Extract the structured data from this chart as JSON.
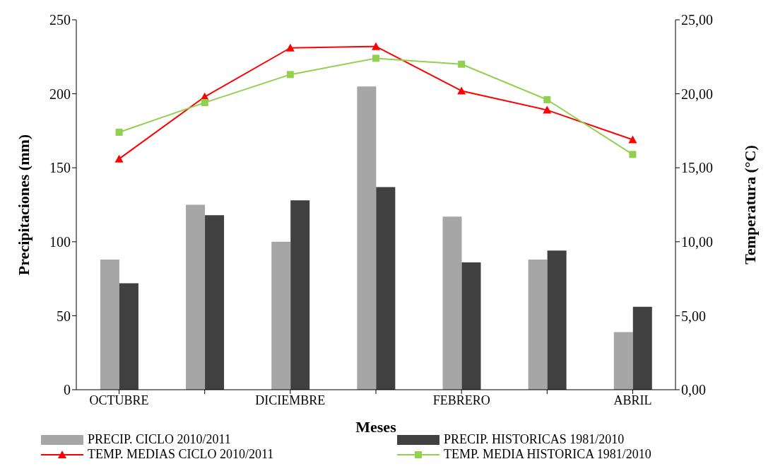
{
  "chart_data": {
    "type": "bar",
    "xlabel": "Meses",
    "ylabel": "Precipitaciones (mm)",
    "y2label": "Temperatura (°C)",
    "categories": [
      "OCTUBRE",
      null,
      "DICIEMBRE",
      null,
      "FEBRERO",
      null,
      "ABRIL"
    ],
    "series": [
      {
        "name": "PRECIP. CICLO 2010/2011",
        "color": "#a6a6a6",
        "values": [
          88,
          125,
          100,
          205,
          117,
          88,
          39
        ]
      },
      {
        "name": "PRECIP. HISTORICAS 1981/2010",
        "color": "#404040",
        "values": [
          72,
          118,
          128,
          137,
          86,
          94,
          56
        ]
      },
      {
        "name": "TEMP. MEDIAS CICLO 2010/2011",
        "type": "line",
        "axis": "y2",
        "marker": "triangle",
        "color": "#ff0000",
        "values": [
          15.6,
          19.8,
          23.1,
          23.2,
          20.2,
          18.9,
          16.9
        ]
      },
      {
        "name": "TEMP. MEDIA HISTORICA 1981/2010",
        "type": "line",
        "axis": "y2",
        "marker": "square",
        "color": "#92d050",
        "values": [
          17.4,
          19.4,
          21.3,
          22.4,
          22.0,
          19.6,
          15.9
        ]
      }
    ],
    "ylim": [
      0,
      250
    ],
    "yticks": [
      0,
      50,
      100,
      150,
      200,
      250
    ],
    "y2lim": [
      0,
      25
    ],
    "y2ticks": [
      {
        "value": 0,
        "label": "0,00"
      },
      {
        "value": 5,
        "label": "5,00"
      },
      {
        "value": 10,
        "label": "10,00"
      },
      {
        "value": 15,
        "label": "15,00"
      },
      {
        "value": 20,
        "label": "20,00"
      },
      {
        "value": 25,
        "label": "25,00"
      }
    ],
    "legend": "bottom",
    "grid": false,
    "line_style": "solid"
  }
}
